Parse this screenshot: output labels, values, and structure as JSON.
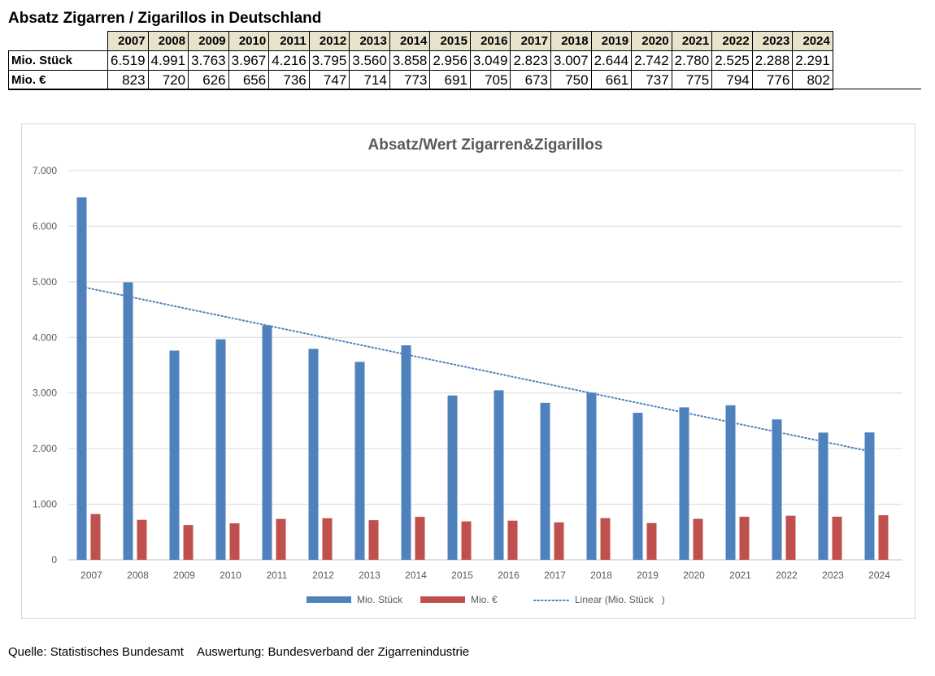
{
  "page_title": "Absatz Zigarren / Zigarillos in Deutschland",
  "table": {
    "years": [
      "2007",
      "2008",
      "2009",
      "2010",
      "2011",
      "2012",
      "2013",
      "2014",
      "2015",
      "2016",
      "2017",
      "2018",
      "2019",
      "2020",
      "2021",
      "2022",
      "2023",
      "2024"
    ],
    "rows": [
      {
        "label": "Mio. Stück",
        "values": [
          "6.519",
          "4.991",
          "3.763",
          "3.967",
          "4.216",
          "3.795",
          "3.560",
          "3.858",
          "2.956",
          "3.049",
          "2.823",
          "3.007",
          "2.644",
          "2.742",
          "2.780",
          "2.525",
          "2.288",
          "2.291"
        ]
      },
      {
        "label": "Mio. €",
        "values": [
          "823",
          "720",
          "626",
          "656",
          "736",
          "747",
          "714",
          "773",
          "691",
          "705",
          "673",
          "750",
          "661",
          "737",
          "775",
          "794",
          "776",
          "802"
        ]
      }
    ]
  },
  "chart_data": {
    "type": "bar",
    "title": "Absatz/Wert Zigarren&Zigarillos",
    "categories": [
      "2007",
      "2008",
      "2009",
      "2010",
      "2011",
      "2012",
      "2013",
      "2014",
      "2015",
      "2016",
      "2017",
      "2018",
      "2019",
      "2020",
      "2021",
      "2022",
      "2023",
      "2024"
    ],
    "series": [
      {
        "name": "Mio. Stück",
        "color": "#4f81bd",
        "values": [
          6519,
          4991,
          3763,
          3967,
          4216,
          3795,
          3560,
          3858,
          2956,
          3049,
          2823,
          3007,
          2644,
          2742,
          2780,
          2525,
          2288,
          2291
        ]
      },
      {
        "name": "Mio. €",
        "color": "#c0504d",
        "values": [
          823,
          720,
          626,
          656,
          736,
          747,
          714,
          773,
          691,
          705,
          673,
          750,
          661,
          737,
          775,
          794,
          776,
          802
        ]
      }
    ],
    "trendline": {
      "name": "Linear (Mio. Stück   )",
      "type": "linear",
      "of_series": "Mio. Stück",
      "color": "#4f81bd",
      "style": "dotted"
    },
    "ylim": [
      0,
      7000
    ],
    "yticks": [
      0,
      1000,
      2000,
      3000,
      4000,
      5000,
      6000,
      7000
    ],
    "ytick_labels": [
      "0",
      "1.000",
      "2.000",
      "3.000",
      "4.000",
      "5.000",
      "6.000",
      "7.000"
    ],
    "grid": true,
    "legend_position": "bottom",
    "xlabel": "",
    "ylabel": ""
  },
  "source": {
    "quelle": "Quelle: Statistisches Bundesamt",
    "auswertung": "Auswertung: Bundesverband der Zigarrenindustrie"
  }
}
